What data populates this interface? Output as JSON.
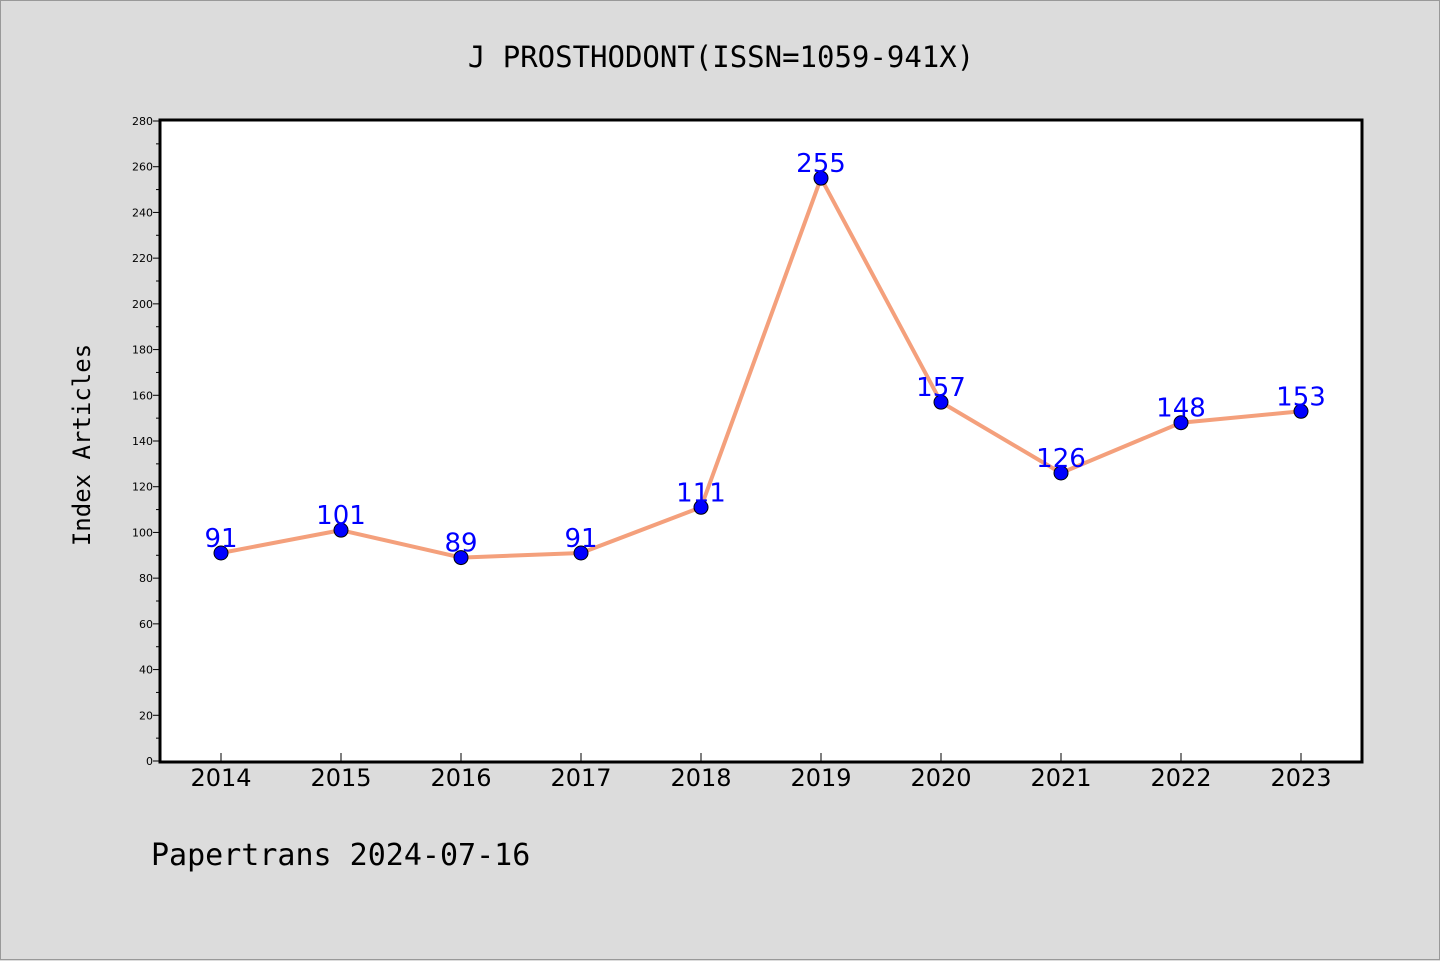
{
  "colors": {
    "background": "#dcdcdc",
    "plot_background": "#ffffff",
    "line": "#f4a07c",
    "marker": "#0000ff",
    "data_label": "#0000ff"
  },
  "footer": "Papertrans 2024-07-16",
  "chart_data": {
    "type": "line",
    "title": "J PROSTHODONT(ISSN=1059-941X)",
    "xlabel": "",
    "ylabel": "Index Articles",
    "categories": [
      "2014",
      "2015",
      "2016",
      "2017",
      "2018",
      "2019",
      "2020",
      "2021",
      "2022",
      "2023"
    ],
    "values": [
      91,
      101,
      89,
      91,
      111,
      255,
      157,
      126,
      148,
      153
    ],
    "ylim": [
      0,
      280
    ],
    "yticks": [
      0,
      20,
      40,
      60,
      80,
      100,
      120,
      140,
      160,
      180,
      200,
      220,
      240,
      260,
      280
    ],
    "grid": false,
    "data_labels": true
  }
}
